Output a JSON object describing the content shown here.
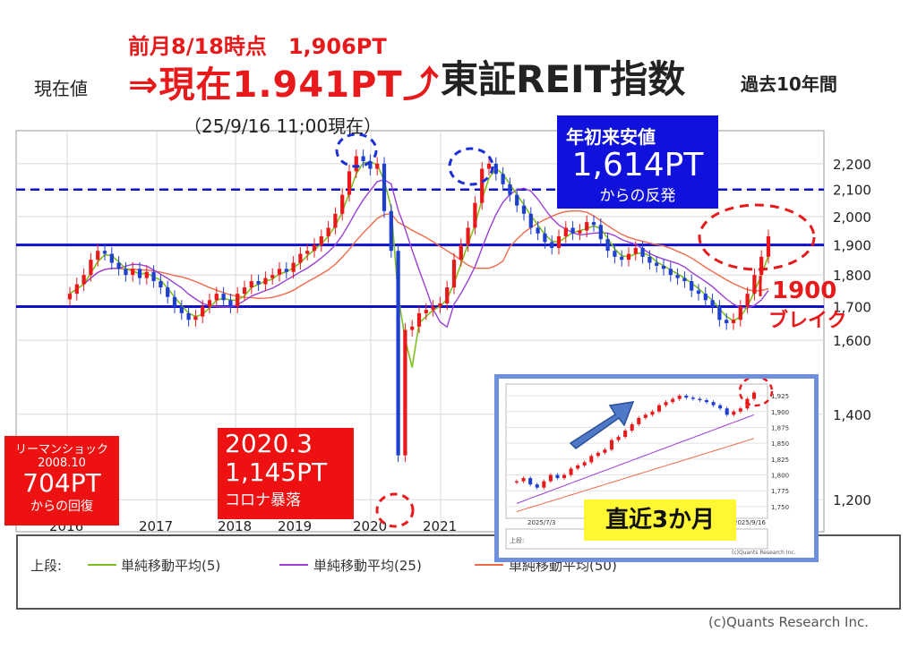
{
  "header": {
    "current_label": "現在値",
    "prev_month": "前月8/18時点　1,906PT",
    "current_value": "⇒現在1.941PT⤴",
    "as_of": "（25/9/16 11;00現在）",
    "title": "東証REIT指数",
    "subtitle": "過去10年間"
  },
  "annotations": {
    "ytd_low_title": "年初来安値",
    "ytd_low_value": "1,614PT",
    "ytd_low_note": "からの反発",
    "break_1": "1900",
    "break_2": "ブレイク",
    "lehman_1": "リーマンショック",
    "lehman_2": "2008.10",
    "lehman_3": "704PT",
    "lehman_4": "からの回復",
    "covid_1": "2020.3",
    "covid_2": "1,145PT",
    "covid_3": "コロナ暴落",
    "inset_label": "直近3か月"
  },
  "legend": {
    "prefix": "上段:",
    "ma5": "単純移動平均(5)",
    "ma25": "単純移動平均(25)",
    "ma50": "単純移動平均(50)"
  },
  "copyright": "(c)Quants Research Inc.",
  "inset_legend": {
    "prefix": "上段:",
    "copyright": "(c)Quants Research Inc."
  },
  "colors": {
    "candle_up": "#e8191b",
    "candle_down": "#1f3fd0",
    "ma5": "#7fbf1f",
    "ma25": "#9b3fd6",
    "ma50": "#f06a4a",
    "support_line": "#1111cc",
    "accent_red": "#e8191b"
  },
  "chart_data": {
    "type": "candlestick",
    "x_ticks": [
      "2016",
      "2017",
      "2018",
      "2019",
      "2020",
      "2021"
    ],
    "y_ticks": [
      1200,
      1400,
      1600,
      1700,
      1800,
      1900,
      2000,
      2100,
      2200
    ],
    "y_tick_labels": [
      "1,200",
      "1,400",
      "1,600",
      "1,700",
      "1,800",
      "1,900",
      "2,000",
      "2,100",
      "2,200"
    ],
    "y_scale": "log",
    "ylim": [
      1140,
      2320
    ],
    "reference_lines": [
      {
        "value": 1900,
        "style": "solid"
      },
      {
        "value": 1700,
        "style": "solid"
      },
      {
        "value": 2100,
        "style": "dashed"
      }
    ],
    "close_series": [
      1740,
      1770,
      1800,
      1850,
      1880,
      1870,
      1840,
      1820,
      1800,
      1820,
      1790,
      1810,
      1780,
      1760,
      1730,
      1700,
      1680,
      1660,
      1670,
      1700,
      1720,
      1740,
      1720,
      1700,
      1740,
      1760,
      1780,
      1770,
      1790,
      1800,
      1820,
      1810,
      1840,
      1870,
      1880,
      1900,
      1930,
      1960,
      2010,
      2080,
      2170,
      2230,
      2210,
      2180,
      2200,
      2020,
      1880,
      1300,
      1630,
      1640,
      1680,
      1690,
      1700,
      1710,
      1760,
      1850,
      1900,
      1960,
      2050,
      2180,
      2200,
      2160,
      2120,
      2080,
      2040,
      2010,
      1960,
      1940,
      1910,
      1890,
      1930,
      1960,
      1940,
      1950,
      1980,
      1970,
      1920,
      1880,
      1860,
      1850,
      1870,
      1890,
      1860,
      1840,
      1830,
      1820,
      1800,
      1790,
      1780,
      1750,
      1740,
      1720,
      1700,
      1660,
      1650,
      1660,
      1700,
      1740,
      1800,
      1860,
      1930
    ]
  },
  "inset_chart": {
    "type": "candlestick",
    "x_ticks": [
      "2025/7/3",
      "2025/9/16"
    ],
    "y_ticks": [
      1750,
      1775,
      1800,
      1825,
      1850,
      1875,
      1900,
      1925
    ],
    "y_tick_labels": [
      "1,750",
      "1,775",
      "1,800",
      "1,825",
      "1,850",
      "1,875",
      "1,900",
      "1,925"
    ],
    "ylim": [
      1740,
      1935
    ],
    "close_series": [
      1790,
      1795,
      1785,
      1780,
      1790,
      1800,
      1795,
      1800,
      1810,
      1815,
      1820,
      1830,
      1835,
      1840,
      1855,
      1860,
      1870,
      1880,
      1890,
      1895,
      1900,
      1910,
      1915,
      1920,
      1925,
      1922,
      1920,
      1918,
      1915,
      1910,
      1905,
      1895,
      1900,
      1905,
      1920,
      1930
    ]
  }
}
